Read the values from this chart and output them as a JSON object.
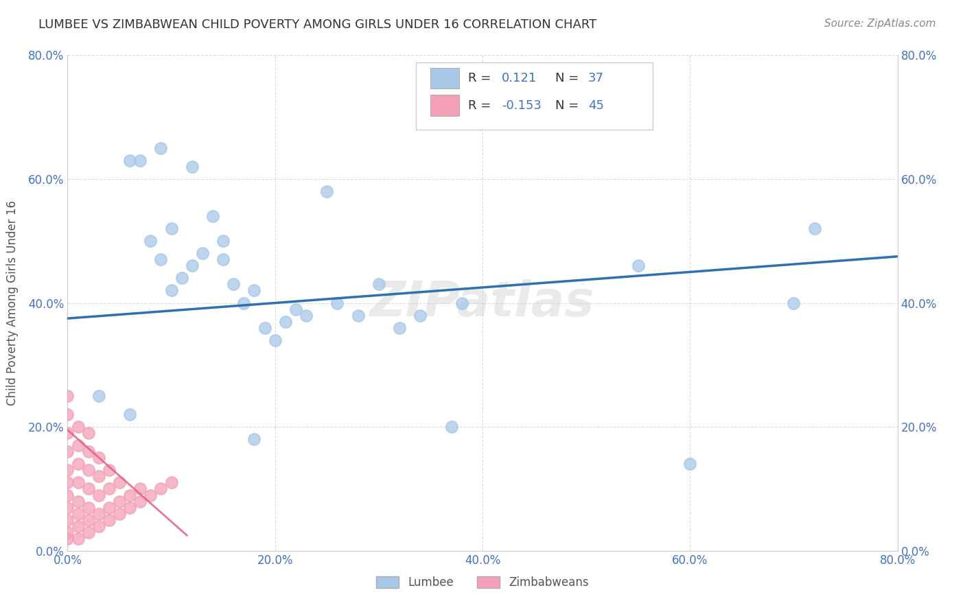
{
  "title": "LUMBEE VS ZIMBABWEAN CHILD POVERTY AMONG GIRLS UNDER 16 CORRELATION CHART",
  "source": "Source: ZipAtlas.com",
  "ylabel": "Child Poverty Among Girls Under 16",
  "xlim": [
    0,
    0.8
  ],
  "ylim": [
    0,
    0.8
  ],
  "tick_vals": [
    0,
    0.2,
    0.4,
    0.6,
    0.8
  ],
  "tick_labels": [
    "0.0%",
    "20.0%",
    "40.0%",
    "60.0%",
    "80.0%"
  ],
  "lumbee_R": 0.121,
  "lumbee_N": 37,
  "zimbabwean_R": -0.153,
  "zimbabwean_N": 45,
  "lumbee_color": "#a8c8e8",
  "zimbabwean_color": "#f4a0b8",
  "lumbee_line_color": "#3070b0",
  "zimbabwean_line_color": "#e06080",
  "watermark": "ZIPatlas",
  "lumbee_x": [
    0.03,
    0.06,
    0.07,
    0.08,
    0.09,
    0.1,
    0.1,
    0.11,
    0.12,
    0.12,
    0.13,
    0.14,
    0.15,
    0.15,
    0.16,
    0.17,
    0.18,
    0.19,
    0.2,
    0.21,
    0.22,
    0.23,
    0.25,
    0.26,
    0.28,
    0.3,
    0.32,
    0.34,
    0.37,
    0.38,
    0.55,
    0.6,
    0.7,
    0.72,
    0.18,
    0.06,
    0.09
  ],
  "lumbee_y": [
    0.25,
    0.63,
    0.63,
    0.5,
    0.47,
    0.52,
    0.42,
    0.44,
    0.46,
    0.62,
    0.48,
    0.54,
    0.5,
    0.47,
    0.43,
    0.4,
    0.42,
    0.36,
    0.34,
    0.37,
    0.39,
    0.38,
    0.58,
    0.4,
    0.38,
    0.43,
    0.36,
    0.38,
    0.2,
    0.4,
    0.46,
    0.14,
    0.4,
    0.52,
    0.18,
    0.22,
    0.65
  ],
  "zimbabwean_x": [
    0.0,
    0.0,
    0.0,
    0.0,
    0.0,
    0.0,
    0.0,
    0.0,
    0.0,
    0.0,
    0.0,
    0.01,
    0.01,
    0.01,
    0.01,
    0.01,
    0.01,
    0.01,
    0.01,
    0.02,
    0.02,
    0.02,
    0.02,
    0.02,
    0.02,
    0.02,
    0.03,
    0.03,
    0.03,
    0.03,
    0.03,
    0.04,
    0.04,
    0.04,
    0.04,
    0.05,
    0.05,
    0.05,
    0.06,
    0.06,
    0.07,
    0.07,
    0.08,
    0.09,
    0.1
  ],
  "zimbabwean_y": [
    0.02,
    0.03,
    0.05,
    0.07,
    0.09,
    0.11,
    0.13,
    0.16,
    0.19,
    0.22,
    0.25,
    0.02,
    0.04,
    0.06,
    0.08,
    0.11,
    0.14,
    0.17,
    0.2,
    0.03,
    0.05,
    0.07,
    0.1,
    0.13,
    0.16,
    0.19,
    0.04,
    0.06,
    0.09,
    0.12,
    0.15,
    0.05,
    0.07,
    0.1,
    0.13,
    0.06,
    0.08,
    0.11,
    0.07,
    0.09,
    0.08,
    0.1,
    0.09,
    0.1,
    0.11
  ],
  "background_color": "#ffffff",
  "grid_color": "#cccccc",
  "title_color": "#333333",
  "axis_label_color": "#555555",
  "tick_color": "#4472c4"
}
